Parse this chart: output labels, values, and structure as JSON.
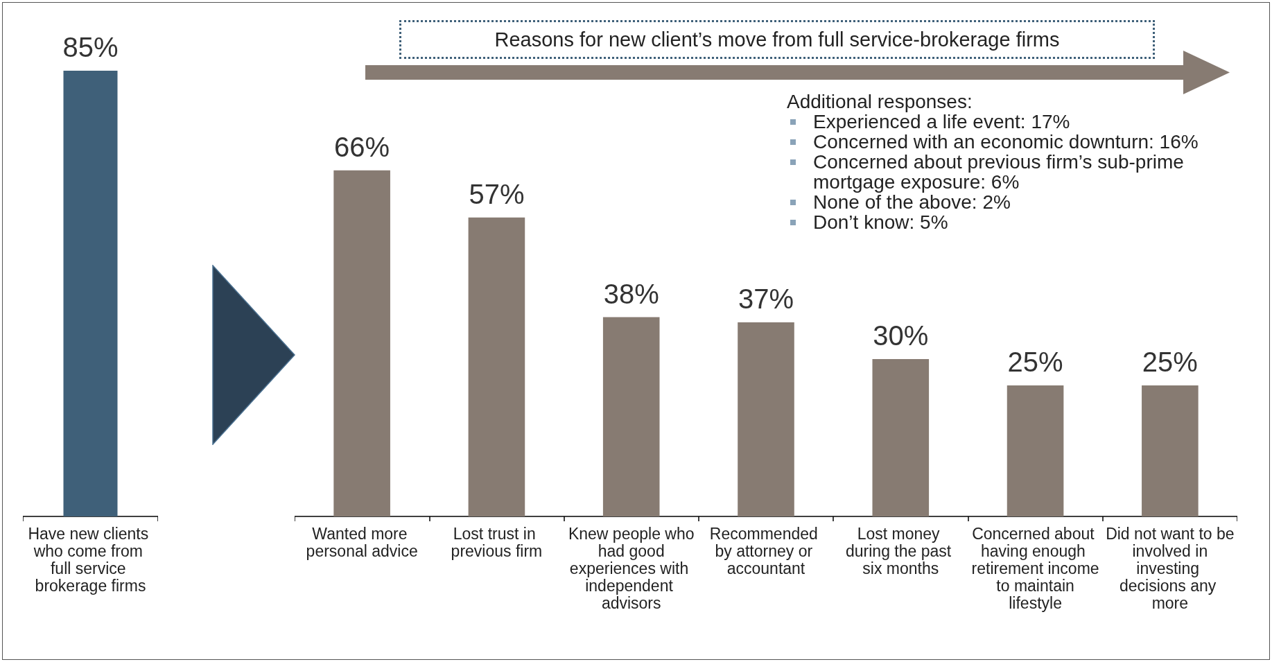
{
  "chart_data": [
    {
      "type": "bar",
      "categories": [
        "Have new clients who come from full service brokerage firms"
      ],
      "values": [
        85
      ],
      "value_labels": [
        "85%"
      ],
      "color": "#3f6079"
    },
    {
      "type": "bar",
      "title": "Reasons for new client’s move from full service-brokerage firms",
      "categories": [
        "Wanted more personal advice",
        "Lost trust in previous firm",
        "Knew people who had good experiences with independent advisors",
        "Recommended by attorney or accountant",
        "Lost money during the past six months",
        "Concerned about having enough retirement income to maintain lifestyle",
        "Did not want to be involved in investing decisions any more"
      ],
      "values": [
        66,
        57,
        38,
        37,
        30,
        25,
        25
      ],
      "value_labels": [
        "66%",
        "57%",
        "38%",
        "37%",
        "30%",
        "25%",
        "25%"
      ],
      "color": "#877b72",
      "annotations": [
        "Additional responses:",
        "Experienced a life event: 17%",
        "Concerned with an economic downturn: 16%",
        "Concerned about previous firm’s sub-prime mortgage exposure: 6%",
        "None of the above: 2%",
        "Don’t know: 5%"
      ]
    }
  ]
}
